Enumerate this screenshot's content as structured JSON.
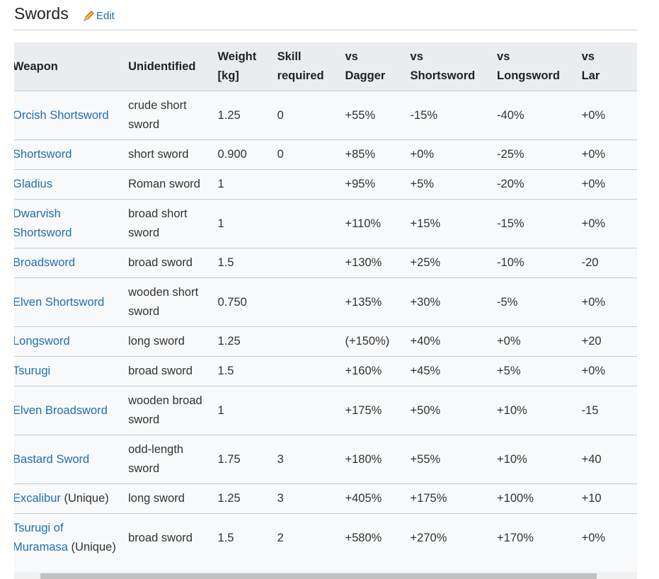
{
  "header": {
    "title": "Swords",
    "edit": "Edit"
  },
  "table": {
    "headers": [
      [
        "Weapon"
      ],
      [
        "Unidentified"
      ],
      [
        "Weight",
        "[kg]"
      ],
      [
        "Skill",
        "required"
      ],
      [
        "vs",
        "Dagger"
      ],
      [
        "vs",
        "Shortsword"
      ],
      [
        "vs",
        "Longsword"
      ],
      [
        "vs",
        "Lar"
      ]
    ],
    "rows": [
      {
        "weapon": "Orcish Shortsword",
        "unidentified": "crude short sword",
        "weight": "1.25",
        "skill": "0",
        "vs": [
          "+55%",
          "-15%",
          "-40%",
          "+0%"
        ]
      },
      {
        "weapon": "Shortsword",
        "unidentified": "short sword",
        "weight": "0.900",
        "skill": "0",
        "vs": [
          "+85%",
          "+0%",
          "-25%",
          "+0%"
        ]
      },
      {
        "weapon": "Gladius",
        "unidentified": "Roman sword",
        "weight": "1",
        "vs": [
          "+95%",
          "+5%",
          "-20%",
          "+0%"
        ]
      },
      {
        "weapon": "Dwarvish Shortsword",
        "unidentified": "broad short sword",
        "weight": "1",
        "vs": [
          "+110%",
          "+15%",
          "-15%",
          "+0%"
        ]
      },
      {
        "weapon": "Broadsword",
        "unidentified": "broad sword",
        "weight": "1.5",
        "vs": [
          "+130%",
          "+25%",
          "-10%",
          "-20"
        ]
      },
      {
        "weapon": "Elven Shortsword",
        "unidentified": "wooden short sword",
        "weight": "0.750",
        "vs": [
          "+135%",
          "+30%",
          "-5%",
          "+0%"
        ]
      },
      {
        "weapon": "Longsword",
        "unidentified": "long sword",
        "weight": "1.25",
        "vs": [
          "(+150%)",
          "+40%",
          "+0%",
          "+20"
        ]
      },
      {
        "weapon": "Tsurugi",
        "unidentified": "broad sword",
        "weight": "1.5",
        "vs": [
          "+160%",
          "+45%",
          "+5%",
          "+0%"
        ]
      },
      {
        "weapon": "Elven Broadsword",
        "unidentified": "wooden broad sword",
        "weight": "1",
        "vs": [
          "+175%",
          "+50%",
          "+10%",
          "-15"
        ]
      },
      {
        "weapon": "Bastard Sword",
        "unidentified": "odd-length sword",
        "weight": "1.75",
        "skill": "3",
        "vs": [
          "+180%",
          "+55%",
          "+10%",
          "+40"
        ]
      },
      {
        "weapon": "Excalibur",
        "note": "(Unique)",
        "unidentified": "long sword",
        "weight": "1.25",
        "skill": "3",
        "vs": [
          "+405%",
          "+175%",
          "+100%",
          "+10"
        ]
      },
      {
        "weapon": "Tsurugi of Muramasa",
        "note": "(Unique)",
        "unidentified": "broad sword",
        "weight": "1.5",
        "skill": "2",
        "vs": [
          "+580%",
          "+270%",
          "+170%",
          "+0%"
        ]
      }
    ]
  }
}
